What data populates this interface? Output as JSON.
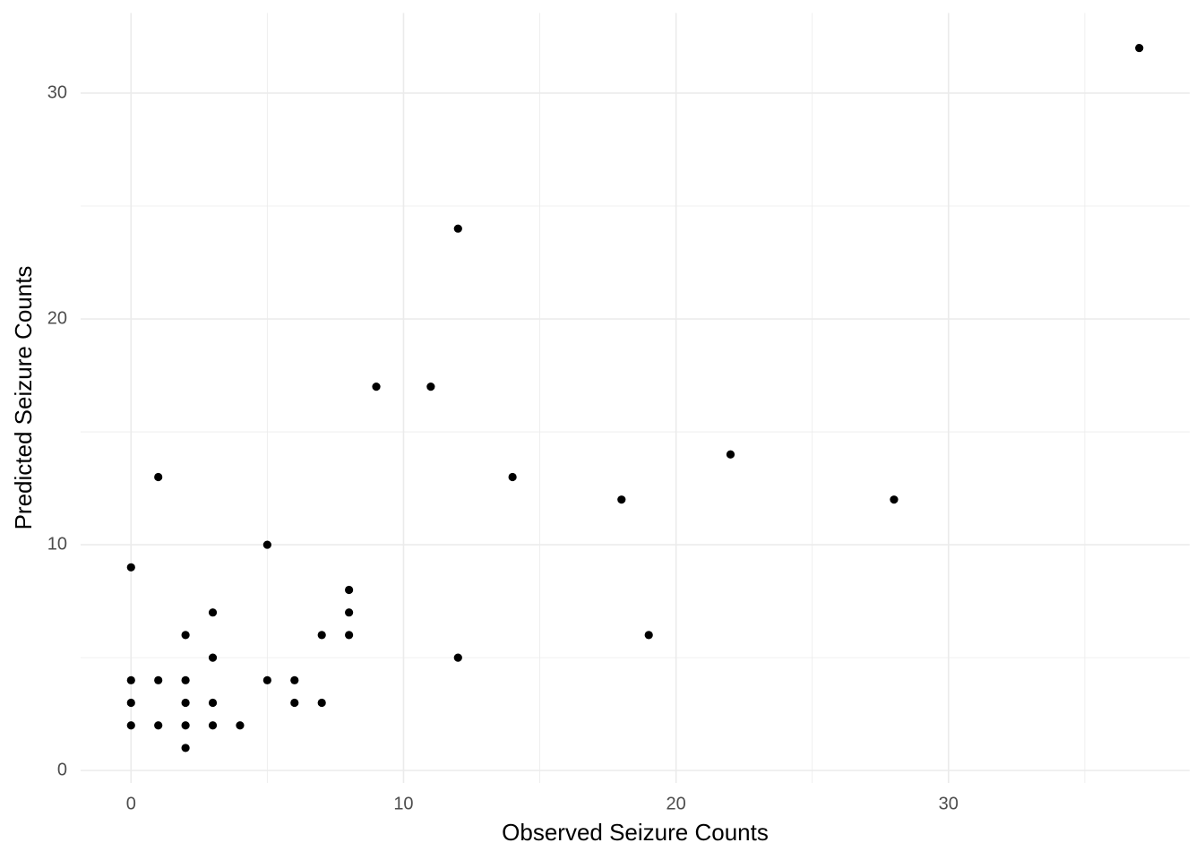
{
  "chart_data": {
    "type": "scatter",
    "x_label": "Observed Seizure Counts",
    "y_label": "Predicted Seizure Counts",
    "x": [
      37,
      12,
      9,
      11,
      22,
      1,
      14,
      18,
      28,
      5,
      0,
      8,
      3,
      8,
      2,
      7,
      8,
      19,
      3,
      12,
      0,
      1,
      2,
      5,
      6,
      0,
      2,
      3,
      6,
      7,
      0,
      1,
      2,
      3,
      4,
      2
    ],
    "values": [
      32,
      24,
      17,
      17,
      14,
      13,
      13,
      12,
      12,
      10,
      9,
      8,
      7,
      7,
      6,
      6,
      6,
      6,
      5,
      5,
      4,
      4,
      4,
      4,
      4,
      3,
      3,
      3,
      3,
      3,
      2,
      2,
      2,
      2,
      2,
      1
    ],
    "color": "#000000",
    "xlim": [
      -1.85,
      38.85
    ],
    "ylim": [
      -0.55,
      33.55
    ],
    "xticks": [
      0,
      10,
      20,
      30
    ],
    "yticks": [
      0,
      10,
      20,
      30
    ],
    "x_minor_ticks": [
      5,
      15,
      25,
      35
    ],
    "y_minor_ticks": [
      5,
      15,
      25
    ],
    "grid": true
  }
}
